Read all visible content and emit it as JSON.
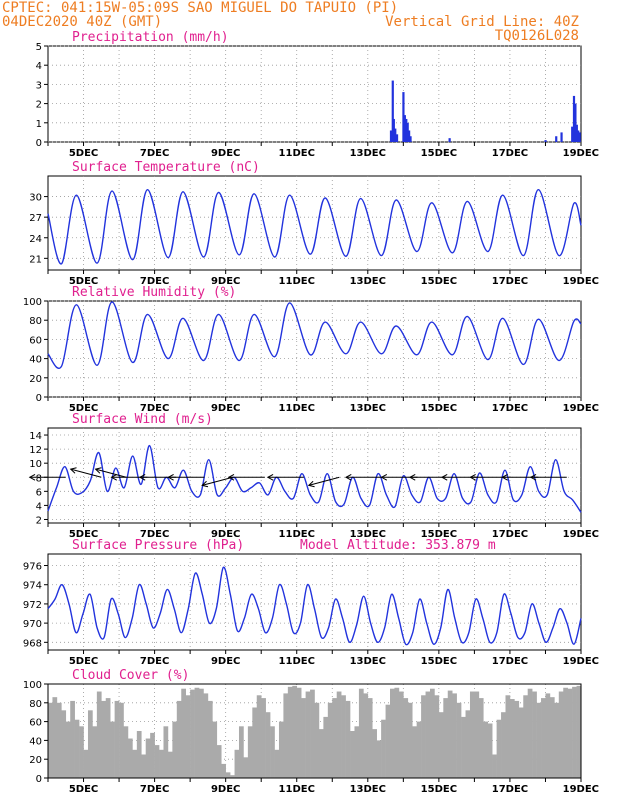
{
  "header": {
    "station": "CPTEC:  041:15W-05:09S  SAO MIGUEL DO TAPUIO (PI)",
    "date": "04DEC2020 40Z (GMT)",
    "grid_line": "Vertical Grid Line: 40Z",
    "model": "TQ0126L028"
  },
  "colors": {
    "line": "#2233dd",
    "grid": "#999999",
    "cloud": "#aaaaaa",
    "title": "#e0208f",
    "header": "#ee7d22",
    "arrow": "#000000"
  },
  "chart_data": [
    {
      "type": "bar",
      "title": "Precipitation (mm/h)",
      "ylim": [
        0,
        5
      ],
      "yticks": [
        0,
        1,
        2,
        3,
        4,
        5
      ],
      "xticks": [
        "5DEC",
        "7DEC",
        "9DEC",
        "11DEC",
        "13DEC",
        "15DEC",
        "17DEC",
        "19DEC"
      ],
      "x_start_day": 4.0,
      "x_end_day": 19.0,
      "grid": true,
      "points": [
        [
          13.65,
          0.6
        ],
        [
          13.7,
          3.2
        ],
        [
          13.73,
          1.2
        ],
        [
          13.77,
          0.7
        ],
        [
          13.82,
          0.4
        ],
        [
          14.0,
          2.6
        ],
        [
          14.04,
          1.4
        ],
        [
          14.08,
          1.2
        ],
        [
          14.12,
          1.0
        ],
        [
          14.16,
          0.6
        ],
        [
          14.2,
          0.3
        ],
        [
          15.3,
          0.2
        ],
        [
          18.0,
          0.1
        ],
        [
          18.3,
          0.3
        ],
        [
          18.45,
          0.5
        ],
        [
          18.75,
          0.8
        ],
        [
          18.8,
          2.4
        ],
        [
          18.84,
          2.0
        ],
        [
          18.88,
          0.9
        ],
        [
          18.92,
          0.6
        ],
        [
          18.96,
          0.5
        ]
      ]
    },
    {
      "type": "line",
      "title": "Surface Temperature (nC)",
      "ylim": [
        19.3,
        33.0
      ],
      "yticks": [
        21,
        24,
        27,
        30
      ],
      "xticks": [
        "5DEC",
        "7DEC",
        "9DEC",
        "11DEC",
        "13DEC",
        "15DEC",
        "17DEC",
        "19DEC"
      ],
      "x_start_day": 4.0,
      "x_end_day": 19.0,
      "grid": true,
      "min_day_frac": 0.38,
      "max_day_frac": 0.8,
      "start_value": 27.5,
      "daily_min": [
        20.2,
        20.3,
        20.8,
        21.1,
        21.2,
        21.5,
        21.2,
        21.6,
        21.3,
        21.4,
        22.0,
        21.8,
        22.0,
        21.4,
        21.4
      ],
      "daily_max": [
        30.2,
        30.8,
        31.0,
        30.7,
        30.6,
        30.4,
        30.2,
        29.8,
        29.7,
        29.5,
        29.1,
        29.3,
        30.2,
        31.0,
        29.0
      ],
      "end_value": 25.8
    },
    {
      "type": "line",
      "title": "Relative Humidity (%)",
      "ylim": [
        0,
        100
      ],
      "yticks": [
        0,
        20,
        40,
        60,
        80,
        100
      ],
      "xticks": [
        "5DEC",
        "7DEC",
        "9DEC",
        "11DEC",
        "13DEC",
        "15DEC",
        "17DEC",
        "19DEC"
      ],
      "x_start_day": 4.0,
      "x_end_day": 19.0,
      "grid": true,
      "min_day_frac": 0.8,
      "max_day_frac": 0.38,
      "start_value": 45,
      "daily_max": [
        96,
        99,
        86,
        82,
        86,
        86,
        98,
        78,
        78,
        74,
        78,
        84,
        82,
        81,
        79
      ],
      "daily_min": [
        32,
        33,
        36,
        40,
        38,
        38,
        42,
        44,
        45,
        45,
        44,
        44,
        39,
        34,
        38
      ],
      "end_value": 76
    },
    {
      "type": "line",
      "title": "Surface Wind (m/s)",
      "ylim": [
        1.5,
        15
      ],
      "yticks": [
        2,
        4,
        6,
        8,
        10,
        12,
        14
      ],
      "xticks": [
        "5DEC",
        "7DEC",
        "9DEC",
        "11DEC",
        "13DEC",
        "15DEC",
        "17DEC",
        "19DEC"
      ],
      "x_start_day": 4.0,
      "x_end_day": 19.0,
      "grid": true,
      "values": [
        3.2,
        6.5,
        9.5,
        6.0,
        5.8,
        7.5,
        11.5,
        6.0,
        9.3,
        6.5,
        11.0,
        7.0,
        12.5,
        6.5,
        8.0,
        6.5,
        9.0,
        6.0,
        5.5,
        10.5,
        5.5,
        6.5,
        8.0,
        6.0,
        6.5,
        7.2,
        5.5,
        8.0,
        6.0,
        5.0,
        8.5,
        5.5,
        4.5,
        8.5,
        4.5,
        4.2,
        8.0,
        5.0,
        4.0,
        8.5,
        5.5,
        3.8,
        8.2,
        5.5,
        4.5,
        8.0,
        5.0,
        5.0,
        8.5,
        5.0,
        4.5,
        8.6,
        5.5,
        4.5,
        9.0,
        4.8,
        5.5,
        9.5,
        6.0,
        5.5,
        10.5,
        6.0,
        4.8,
        3.0
      ],
      "arrows": [
        {
          "day": 4.5,
          "dir": "W"
        },
        {
          "day": 5.5,
          "dir": "NW"
        },
        {
          "day": 6.2,
          "dir": "NW"
        },
        {
          "day": 6.8,
          "dir": "W"
        },
        {
          "day": 7.6,
          "dir": "W"
        },
        {
          "day": 8.4,
          "dir": "W"
        },
        {
          "day": 9.2,
          "dir": "SW"
        },
        {
          "day": 10.1,
          "dir": "W"
        },
        {
          "day": 11.2,
          "dir": "W"
        },
        {
          "day": 12.2,
          "dir": "SW"
        },
        {
          "day": 13.4,
          "dir": "W"
        },
        {
          "day": 14.4,
          "dir": "W"
        },
        {
          "day": 15.2,
          "dir": "W"
        },
        {
          "day": 16.1,
          "dir": "W"
        },
        {
          "day": 16.9,
          "dir": "W"
        },
        {
          "day": 17.8,
          "dir": "W"
        },
        {
          "day": 18.6,
          "dir": "W"
        }
      ]
    },
    {
      "type": "line",
      "title": "Surface Pressure (hPa)",
      "annotation": "Model Altitude: 353.879 m",
      "ylim": [
        967.2,
        977.2
      ],
      "yticks": [
        968,
        970,
        972,
        974,
        976
      ],
      "xticks": [
        "5DEC",
        "7DEC",
        "9DEC",
        "11DEC",
        "13DEC",
        "15DEC",
        "17DEC",
        "19DEC"
      ],
      "x_start_day": 4.0,
      "x_end_day": 19.0,
      "grid": true,
      "values": [
        971.5,
        972.5,
        974.0,
        972.0,
        969.0,
        971.0,
        973.0,
        969.5,
        968.5,
        972.5,
        971.0,
        968.5,
        970.5,
        974.0,
        972.0,
        969.5,
        971.0,
        973.5,
        971.5,
        969.0,
        971.5,
        975.2,
        973.0,
        970.0,
        971.5,
        975.8,
        973.0,
        969.2,
        970.5,
        973.0,
        971.5,
        969.0,
        970.5,
        974.0,
        972.0,
        969.0,
        970.0,
        974.0,
        971.5,
        968.5,
        969.5,
        972.5,
        970.5,
        968.0,
        969.8,
        972.8,
        970.0,
        968.0,
        969.5,
        973.0,
        970.5,
        967.8,
        969.0,
        972.5,
        970.0,
        967.8,
        969.5,
        973.5,
        970.5,
        968.0,
        969.0,
        972.5,
        970.5,
        968.0,
        969.0,
        973.0,
        971.0,
        968.5,
        969.0,
        972.0,
        970.0,
        968.0,
        969.5,
        971.5,
        970.0,
        967.8,
        970.5
      ]
    },
    {
      "type": "area",
      "title": "Cloud Cover (%)",
      "ylim": [
        0,
        100
      ],
      "yticks": [
        0,
        20,
        40,
        60,
        80,
        100
      ],
      "xticks": [
        "5DEC",
        "7DEC",
        "9DEC",
        "11DEC",
        "13DEC",
        "15DEC",
        "17DEC",
        "19DEC"
      ],
      "x_start_day": 4.0,
      "x_end_day": 19.0,
      "grid": true,
      "values": [
        80,
        86,
        80,
        72,
        60,
        82,
        62,
        55,
        30,
        72,
        55,
        92,
        82,
        85,
        60,
        82,
        80,
        55,
        42,
        30,
        50,
        25,
        42,
        48,
        35,
        30,
        55,
        28,
        60,
        82,
        95,
        88,
        94,
        96,
        95,
        90,
        82,
        60,
        35,
        15,
        6,
        3,
        30,
        55,
        22,
        55,
        75,
        88,
        85,
        70,
        55,
        30,
        60,
        90,
        97,
        98,
        96,
        85,
        92,
        94,
        80,
        52,
        65,
        80,
        85,
        92,
        88,
        82,
        50,
        55,
        95,
        90,
        85,
        52,
        40,
        62,
        78,
        95,
        96,
        92,
        85,
        80,
        55,
        60,
        88,
        92,
        95,
        88,
        70,
        85,
        93,
        90,
        80,
        65,
        72,
        92,
        92,
        85,
        60,
        58,
        25,
        62,
        70,
        88,
        84,
        82,
        75,
        88,
        95,
        92,
        80,
        85,
        90,
        86,
        80,
        92,
        96,
        95,
        97,
        98
      ]
    }
  ]
}
